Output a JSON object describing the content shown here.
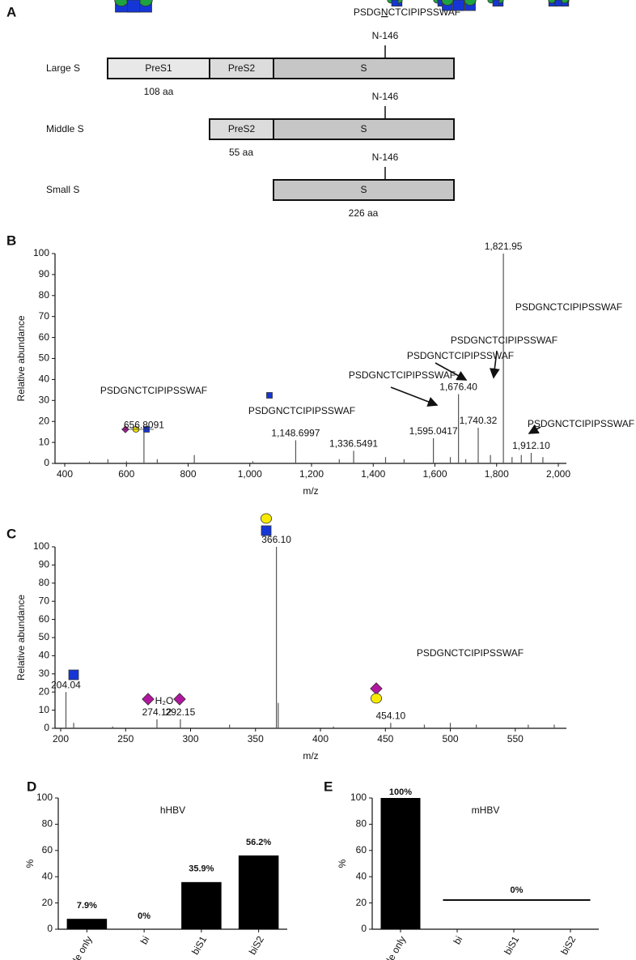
{
  "diagram": {
    "label": "A",
    "sequence": [
      "PSDG",
      "N",
      "CTCIPIPSSWAF"
    ],
    "proteins": [
      {
        "name": "Large S",
        "site": "N-146",
        "segments": [
          "PreS1",
          "PreS2",
          "S"
        ],
        "length": "108 aa"
      },
      {
        "name": "Middle S",
        "site": "N-146",
        "segments": [
          "PreS2",
          "S"
        ],
        "length": "55 aa"
      },
      {
        "name": "Small S",
        "site": "N-146",
        "segments": [
          "S"
        ],
        "length": "226 aa"
      }
    ]
  },
  "chart_data": [
    {
      "type": "spectrum",
      "label": "B",
      "xlabel": "m/z",
      "ylabel": "Relative abundance",
      "color": "#555555",
      "xlim": [
        400,
        2000
      ],
      "ylim": [
        0,
        100
      ],
      "xticks": [
        400,
        600,
        800,
        {
          "value": 1000,
          "label": "1,000"
        },
        {
          "value": 1200,
          "label": "1,200"
        },
        {
          "value": 1400,
          "label": "1,400"
        },
        {
          "value": 1600,
          "label": "1,600"
        },
        {
          "value": 1800,
          "label": "1,800"
        },
        {
          "value": 2000,
          "label": "2,000"
        }
      ],
      "yticks": [
        0,
        10,
        20,
        30,
        40,
        50,
        60,
        70,
        80,
        90,
        100
      ],
      "x": [
        480,
        540,
        600,
        656.8091,
        700,
        820,
        1010,
        1148.6997,
        1290,
        1336.5491,
        1440,
        1500,
        1595.0417,
        1650,
        1676.4,
        1700,
        1740.32,
        1780,
        1821.95,
        1850,
        1880,
        1912.1,
        1950
      ],
      "values": [
        1,
        2,
        1,
        15,
        2,
        4,
        1,
        11,
        2,
        6,
        3,
        2,
        12,
        3,
        33,
        2,
        17,
        4,
        100,
        3,
        4,
        5,
        3
      ],
      "value_labels": [
        null,
        null,
        null,
        "656.8091",
        null,
        null,
        null,
        "1,148.6997",
        null,
        "1,336.5491",
        null,
        null,
        "1,595.0417",
        null,
        "1,676.40",
        null,
        "1,740.32",
        null,
        "1,821.95",
        null,
        null,
        "1,912.10",
        null
      ],
      "annotations": [
        "PSDGNCTCIPIPSSWAF",
        "PSDGNCTCIPIPSSWAF",
        "PSDGNCTCIPIPSSWAF",
        "PSDGNCTCIPIPSSWAF",
        "PSDGNCTCIPIPSSWAF",
        "PSDGNCTCIPIPSSWAF",
        "PSDGNCTCIPIPSSWAF"
      ]
    },
    {
      "type": "spectrum",
      "label": "C",
      "xlabel": "m/z",
      "ylabel": "Relative abundance",
      "color": "#555555",
      "xlim": [
        200,
        590
      ],
      "ylim": [
        0,
        100
      ],
      "xticks": [
        200,
        250,
        300,
        350,
        400,
        450,
        500,
        550
      ],
      "yticks": [
        0,
        10,
        20,
        30,
        40,
        50,
        60,
        70,
        80,
        90,
        100
      ],
      "x": [
        204.04,
        210,
        240,
        274.12,
        292.15,
        330,
        366.1,
        367.5,
        410,
        454.1,
        480,
        500,
        520,
        560,
        580
      ],
      "values": [
        20,
        3,
        1,
        5,
        5,
        2,
        100,
        14,
        1,
        3,
        2,
        3,
        2,
        2,
        2
      ],
      "value_labels": [
        "204.04",
        null,
        null,
        "274.12",
        "292.15",
        null,
        "366.10",
        null,
        null,
        "454.10",
        null,
        null,
        null,
        null,
        null
      ],
      "annotations": [
        "PSDGNCTCIPIPSSWAF",
        "H₂O"
      ]
    },
    {
      "type": "bar",
      "label": "D",
      "title": "hHBV",
      "ylabel": "%",
      "color": "#000000",
      "categories": [
        "Peptide only",
        "bi",
        "biS1",
        "biS2"
      ],
      "values": [
        7.9,
        0,
        35.9,
        56.2
      ],
      "value_labels": [
        "7.9%",
        "0%",
        "35.9%",
        "56.2%"
      ],
      "ylim": [
        0,
        100
      ],
      "yticks": [
        0,
        20,
        40,
        60,
        80,
        100
      ]
    },
    {
      "type": "bar",
      "label": "E",
      "title": "mHBV",
      "ylabel": "%",
      "color": "#000000",
      "categories": [
        "Peptide only",
        "bi",
        "biS1",
        "biS2"
      ],
      "values": [
        100,
        0,
        0,
        0
      ],
      "value_labels": [
        "100%",
        null,
        null,
        null
      ],
      "annotation": "0%",
      "ylim": [
        0,
        100
      ],
      "yticks": [
        0,
        20,
        40,
        60,
        80,
        100
      ]
    }
  ]
}
